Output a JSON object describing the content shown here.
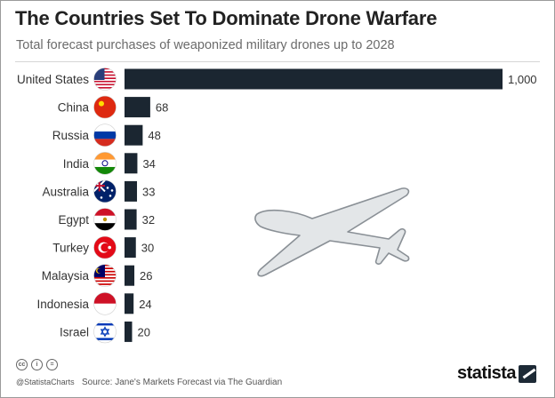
{
  "header": {
    "title": "The Countries Set To Dominate Drone Warfare",
    "subtitle": "Total forecast purchases of weaponized military drones up to 2028"
  },
  "chart_data": {
    "type": "bar",
    "orientation": "horizontal",
    "title": "The Countries Set To Dominate Drone Warfare",
    "subtitle": "Total forecast purchases of weaponized military drones up to 2028",
    "categories": [
      "United States",
      "China",
      "Russia",
      "India",
      "Australia",
      "Egypt",
      "Turkey",
      "Malaysia",
      "Indonesia",
      "Israel"
    ],
    "values": [
      1000,
      68,
      48,
      34,
      33,
      32,
      30,
      26,
      24,
      20
    ],
    "value_labels": [
      "1,000",
      "68",
      "48",
      "34",
      "33",
      "32",
      "30",
      "26",
      "24",
      "20"
    ],
    "xlim": [
      0,
      1000
    ],
    "grid": false,
    "bar_color": "#1b2631",
    "flags": [
      "us-flag-icon",
      "china-flag-icon",
      "russia-flag-icon",
      "india-flag-icon",
      "australia-flag-icon",
      "egypt-flag-icon",
      "turkey-flag-icon",
      "malaysia-flag-icon",
      "indonesia-flag-icon",
      "israel-flag-icon"
    ]
  },
  "footer": {
    "handle": "@StatistaCharts",
    "source": "Source: Jane's Markets Forecast via The Guardian",
    "brand": "statista"
  },
  "colors": {
    "bar": "#1b2631",
    "title": "#222222",
    "subtitle": "#6b6b6b",
    "drone": "#e3e6e8"
  }
}
